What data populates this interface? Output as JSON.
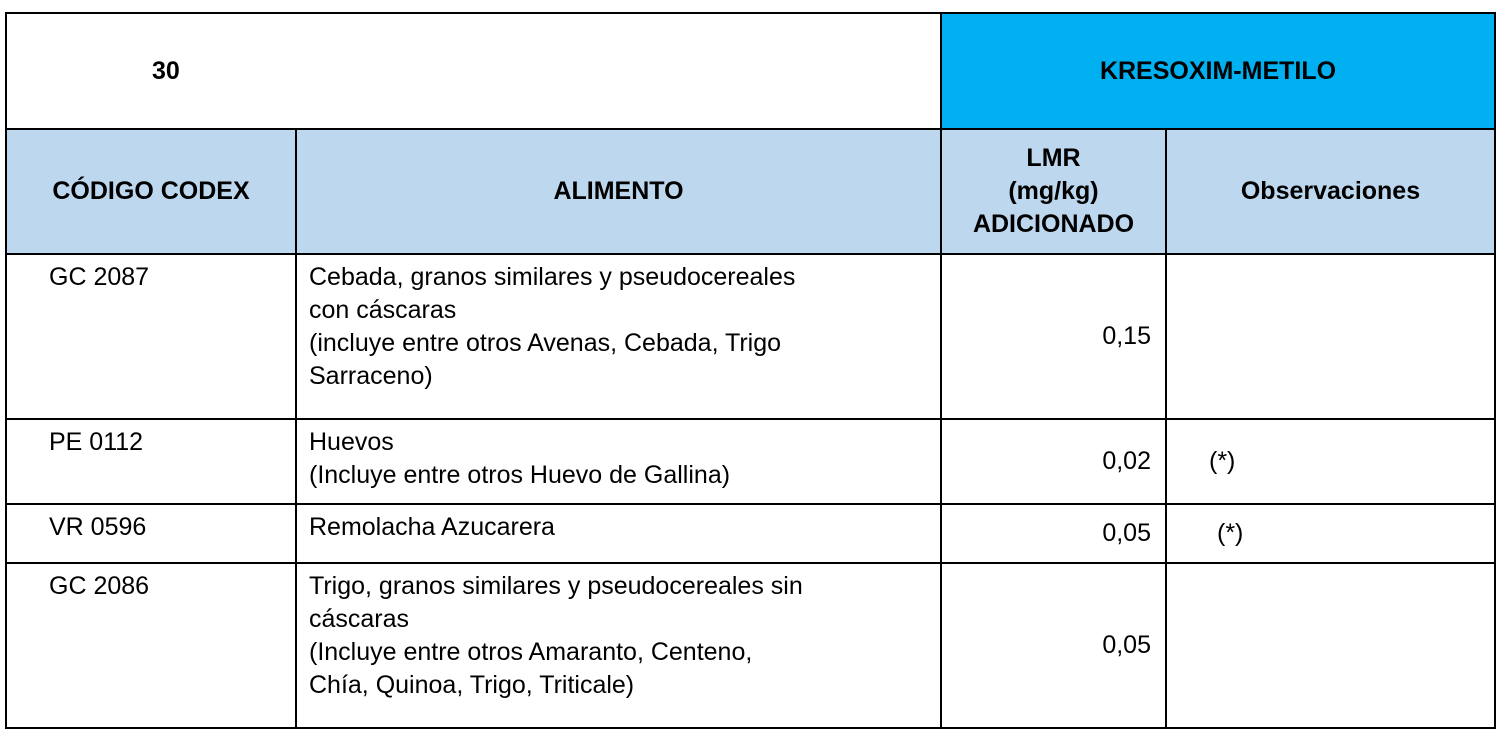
{
  "table": {
    "number": "30",
    "substance": "KRESOXIM-METILO",
    "headers": {
      "code": "CÓDIGO CODEX",
      "food": "ALIMENTO",
      "lmr": [
        "LMR",
        "(mg/kg)",
        "ADICIONADO"
      ],
      "observations": "Observaciones"
    },
    "rows": [
      {
        "code": "GC 2087",
        "food": [
          "Cebada, granos similares y pseudocereales",
          "con cáscaras",
          "(incluye entre otros Avenas, Cebada, Trigo",
          "Sarraceno)"
        ],
        "lmr": "0,15",
        "obs": ""
      },
      {
        "code": "PE 0112",
        "food": [
          "Huevos",
          "(Incluye entre otros Huevo de Gallina)"
        ],
        "lmr": "0,02",
        "obs": "(*)"
      },
      {
        "code": "VR 0596",
        "food": [
          "Remolacha Azucarera"
        ],
        "lmr": "0,05",
        "obs": "(*)"
      },
      {
        "code": "GC 2086",
        "food": [
          "Trigo, granos similares y pseudocereales sin",
          "cáscaras",
          "(Incluye entre otros Amaranto, Centeno,",
          "Chía, Quinoa, Trigo, Triticale)"
        ],
        "lmr": "0,05",
        "obs": ""
      }
    ]
  },
  "colors": {
    "title_bg": "#00b0f0",
    "header_bg": "#bdd7ee"
  }
}
